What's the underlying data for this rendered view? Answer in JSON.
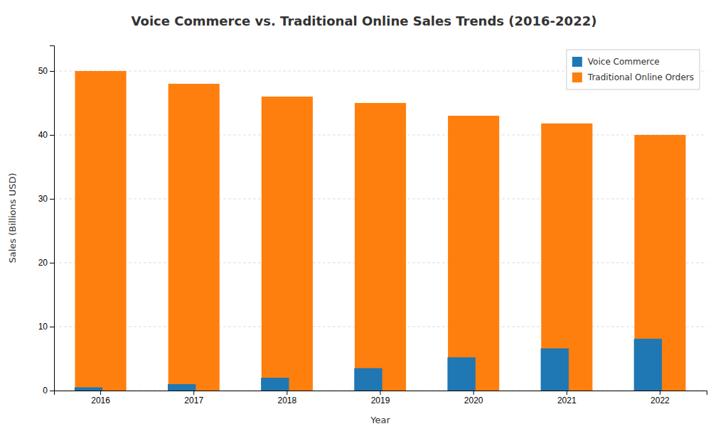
{
  "chart_data": {
    "type": "bar",
    "title": "Voice Commerce vs. Traditional Online Sales Trends (2016-2022)",
    "x_label": "Year",
    "y_label": "Sales (Billions USD)",
    "categories": [
      2016,
      2017,
      2018,
      2019,
      2020,
      2021,
      2022
    ],
    "series": [
      {
        "name": "Voice Commerce",
        "values": [
          0.5,
          1.0,
          2.0,
          3.5,
          5.2,
          6.6,
          8.1
        ]
      },
      {
        "name": "Traditional Online Orders",
        "values": [
          50.0,
          48.0,
          46.0,
          45.0,
          43.0,
          41.8,
          40.0
        ]
      }
    ],
    "ylim": [
      0,
      54
    ],
    "yticks": [
      0,
      10,
      20,
      30,
      40,
      50
    ],
    "grid": true,
    "legend": "upper right"
  }
}
